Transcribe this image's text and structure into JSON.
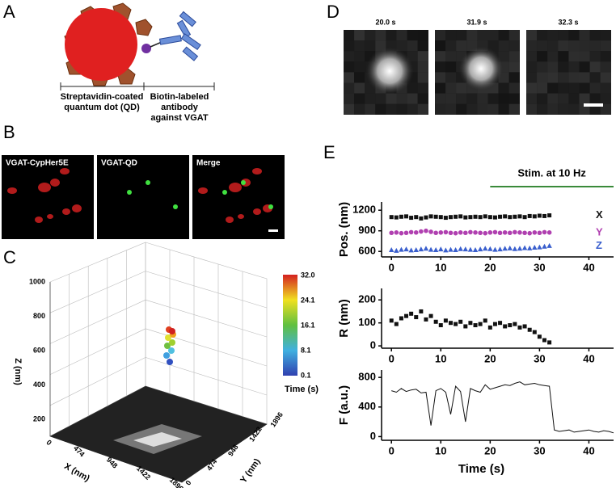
{
  "panel_labels": [
    "A",
    "B",
    "C",
    "D",
    "E"
  ],
  "panel_a": {
    "qd_caption": [
      "Streptavidin-coated",
      "quantum dot (QD)"
    ],
    "antibody_caption": [
      "Biotin-labeled",
      "antibody",
      "against VGAT"
    ]
  },
  "panel_b": {
    "image_titles": [
      "VGAT-CypHer5E",
      "VGAT-QD",
      "Merge"
    ]
  },
  "panel_c": {
    "z_label": "Z (nm)",
    "x_label": "X (nm)",
    "y_label": "Y (nm)",
    "z_ticks": [
      "200",
      "400",
      "600",
      "800",
      "1000"
    ],
    "x_ticks": [
      "0",
      "474",
      "948",
      "1422",
      "1896"
    ],
    "y_ticks": [
      "0",
      "474",
      "948",
      "1422",
      "1896"
    ],
    "colorbar_ticks": [
      "32.0",
      "24.1",
      "16.1",
      "8.1",
      "0.1"
    ],
    "colorbar_label": "Time (s)"
  },
  "panel_d": {
    "image_titles": [
      "20.0 s",
      "31.9 s",
      "32.3 s"
    ]
  },
  "chart_data": [
    {
      "type": "scatter",
      "ylabel": "Pos. (nm)",
      "annotation": {
        "text": "Stim. at 10 Hz",
        "x": [
          20,
          45
        ],
        "color": "#3a8a3a"
      },
      "x": [
        0,
        1,
        2,
        3,
        4,
        5,
        6,
        7,
        8,
        9,
        10,
        11,
        12,
        13,
        14,
        15,
        16,
        17,
        18,
        19,
        20,
        21,
        22,
        23,
        24,
        25,
        26,
        27,
        28,
        29,
        30,
        31,
        32
      ],
      "series": [
        {
          "name": "X",
          "color": "#111111",
          "marker": "square",
          "values": [
            1100,
            1095,
            1105,
            1110,
            1090,
            1100,
            1080,
            1095,
            1110,
            1105,
            1100,
            1090,
            1100,
            1105,
            1110,
            1095,
            1100,
            1105,
            1100,
            1110,
            1100,
            1095,
            1105,
            1110,
            1100,
            1105,
            1110,
            1100,
            1115,
            1110,
            1120,
            1115,
            1125
          ]
        },
        {
          "name": "Y",
          "color": "#b040b0",
          "marker": "circle",
          "values": [
            870,
            875,
            865,
            870,
            880,
            875,
            890,
            900,
            885,
            870,
            875,
            880,
            870,
            865,
            875,
            870,
            880,
            875,
            870,
            865,
            875,
            880,
            870,
            875,
            870,
            880,
            875,
            870,
            865,
            875,
            870,
            880,
            875
          ]
        },
        {
          "name": "Z",
          "color": "#3a5fcd",
          "marker": "triangle",
          "values": [
            620,
            610,
            625,
            630,
            615,
            620,
            630,
            640,
            625,
            620,
            630,
            615,
            625,
            620,
            635,
            630,
            625,
            620,
            630,
            640,
            635,
            625,
            630,
            640,
            645,
            635,
            640,
            650,
            645,
            655,
            660,
            670,
            680
          ]
        }
      ],
      "xlim": [
        -2,
        45
      ],
      "xticks": [
        0,
        10,
        20,
        30,
        40
      ],
      "ylim": [
        520,
        1320
      ],
      "yticks": [
        600,
        900,
        1200
      ]
    },
    {
      "type": "scatter",
      "ylabel": "R (nm)",
      "x": [
        0,
        1,
        2,
        3,
        4,
        5,
        6,
        7,
        8,
        9,
        10,
        11,
        12,
        13,
        14,
        15,
        16,
        17,
        18,
        19,
        20,
        21,
        22,
        23,
        24,
        25,
        26,
        27,
        28,
        29,
        30,
        31,
        32
      ],
      "series": [
        {
          "color": "#111111",
          "marker": "square",
          "values": [
            110,
            95,
            120,
            130,
            140,
            125,
            150,
            115,
            130,
            105,
            90,
            110,
            100,
            95,
            105,
            85,
            100,
            90,
            95,
            110,
            80,
            95,
            100,
            85,
            90,
            95,
            80,
            85,
            70,
            60,
            40,
            25,
            15
          ]
        }
      ],
      "xlim": [
        -2,
        45
      ],
      "xticks": [
        0,
        10,
        20,
        30,
        40
      ],
      "ylim": [
        -10,
        250
      ],
      "yticks": [
        0,
        100,
        200
      ]
    },
    {
      "type": "line",
      "ylabel": "F (a.u.)",
      "xlabel": "Time (s)",
      "x": [
        0,
        1,
        2,
        3,
        4,
        5,
        6,
        7,
        8,
        9,
        10,
        11,
        12,
        13,
        14,
        15,
        16,
        17,
        18,
        19,
        20,
        21,
        22,
        23,
        24,
        25,
        26,
        27,
        28,
        29,
        30,
        31,
        32,
        33,
        34,
        35,
        36,
        37,
        38,
        39,
        40,
        41,
        42,
        43,
        44,
        45
      ],
      "series": [
        {
          "color": "#111111",
          "values": [
            620,
            600,
            650,
            610,
            630,
            640,
            590,
            600,
            150,
            620,
            650,
            600,
            300,
            680,
            610,
            200,
            650,
            620,
            600,
            700,
            640,
            660,
            680,
            700,
            690,
            720,
            740,
            700,
            710,
            720,
            700,
            690,
            680,
            90,
            70,
            80,
            90,
            60,
            70,
            80,
            90,
            70,
            60,
            80,
            70,
            50
          ]
        }
      ],
      "xlim": [
        -2,
        45
      ],
      "xticks": [
        0,
        10,
        20,
        30,
        40
      ],
      "ylim": [
        -50,
        900
      ],
      "yticks": [
        0,
        400,
        800
      ]
    }
  ]
}
